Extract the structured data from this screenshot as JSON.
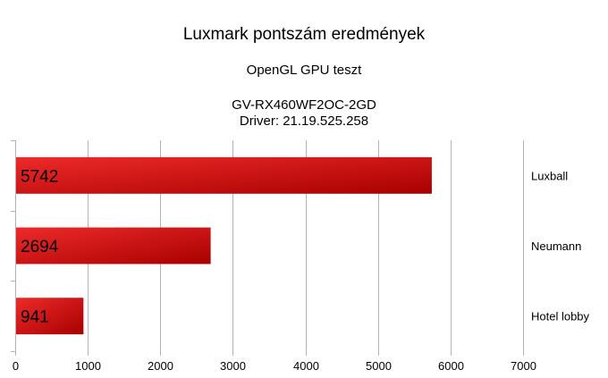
{
  "colors": {
    "bar_light": "#ee2a2a",
    "bar_dark": "#a80000",
    "grid": "#b3b3b3",
    "text": "#000000"
  },
  "chart_data": {
    "type": "bar",
    "orientation": "horizontal",
    "title": "Luxmark pontszám eredmények",
    "subtitle": "OpenGL GPU teszt",
    "subtitle2": [
      "GV-RX460WF2OC-2GD",
      "Driver: 21.19.525.258"
    ],
    "categories": [
      "Luxball",
      "Neumann",
      "Hotel lobby"
    ],
    "values": [
      5742,
      2694,
      941
    ],
    "data_labels": [
      "5742",
      "2694",
      "941"
    ],
    "xlim": [
      0,
      7000
    ],
    "xticks": [
      0,
      1000,
      2000,
      3000,
      4000,
      5000,
      6000,
      7000
    ],
    "xtick_labels": [
      "0",
      "1000",
      "2000",
      "3000",
      "4000",
      "5000",
      "6000",
      "7000"
    ],
    "category_axis_side": "right",
    "grid": true,
    "legend": false
  }
}
